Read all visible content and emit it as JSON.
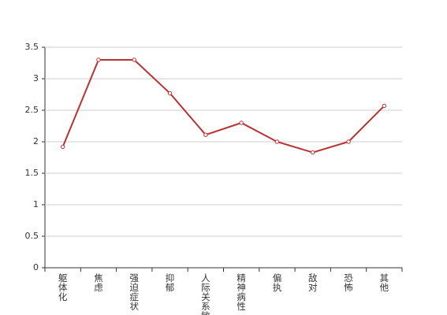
{
  "chart_data": {
    "type": "line",
    "categories": [
      "躯体化",
      "焦虑",
      "强迫症状",
      "抑郁",
      "人际关系敏感",
      "精神病性",
      "偏执",
      "敌对",
      "恐怖",
      "其他"
    ],
    "series": [
      {
        "color": "#b83232",
        "values": [
          1.92,
          3.3,
          3.3,
          2.77,
          2.11,
          2.3,
          2.0,
          1.83,
          2.0,
          2.57
        ]
      }
    ],
    "ylim": [
      0,
      3.5
    ],
    "yticks": [
      0,
      0.5,
      1,
      1.5,
      2,
      2.5,
      3,
      3.5
    ],
    "grid": true
  }
}
